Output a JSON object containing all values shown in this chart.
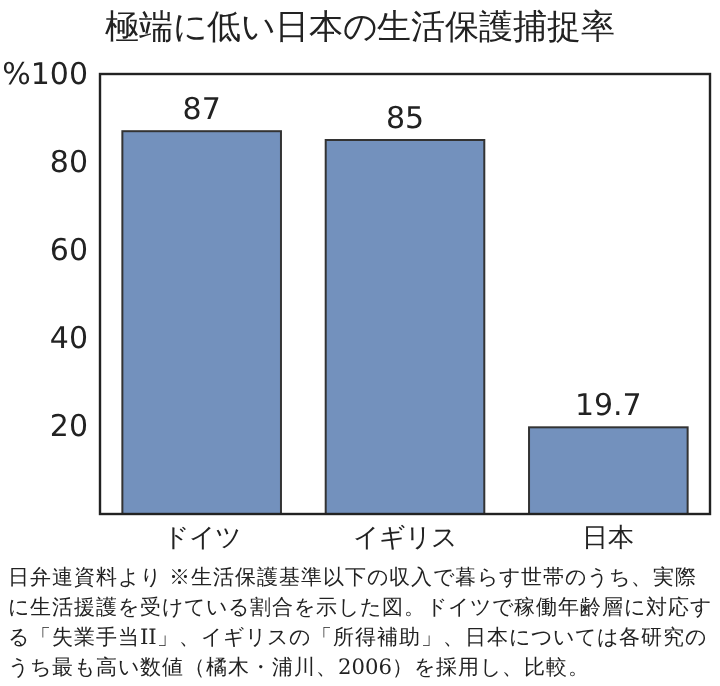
{
  "chart_data": {
    "type": "bar",
    "title": "極端に低い日本の生活保護捕捉率",
    "categories": [
      "ドイツ",
      "イギリス",
      "日本"
    ],
    "values": [
      87,
      85,
      19.7
    ],
    "color": "#7391bd",
    "ylim": [
      0,
      100
    ],
    "yticks": [
      20,
      40,
      60,
      80,
      {
        "value": 100,
        "label": "%100"
      }
    ],
    "data_labels": true,
    "grid": false,
    "annotations": [
      "日弁連資料より ※生活保護基準以下の収入で暮らす世帯のうち、実際に生活援護を受けている割合を示した図。ドイツで稼働年齢層に対応する「失業手当II」、イギリスの「所得補助」、日本については各研究のうち最も高い数値（橘木・浦川、2006）を採用し、比較。"
    ]
  }
}
